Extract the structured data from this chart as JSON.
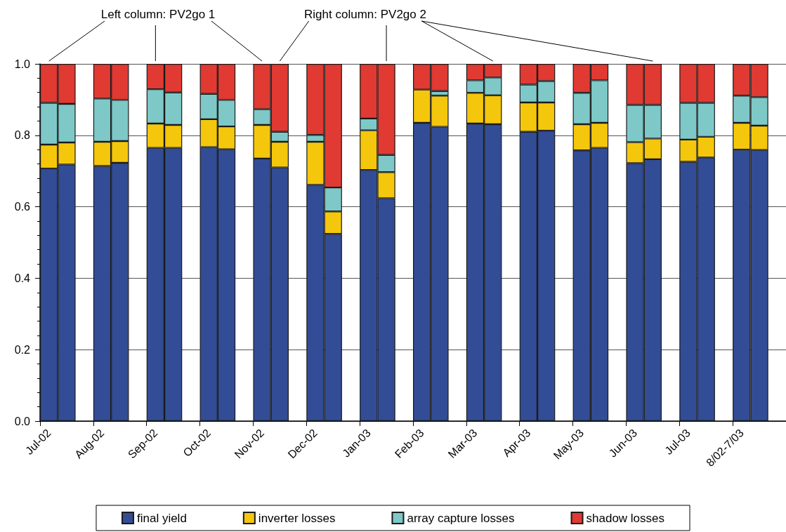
{
  "chart_data": {
    "type": "bar",
    "stacked": true,
    "categories": [
      "Jul-02",
      null,
      null,
      "Aug-02",
      null,
      null,
      "Sep-02",
      null,
      null,
      "Oct-02",
      null,
      null,
      "Nov-02",
      null,
      null,
      "Dec-02",
      null,
      null,
      "Jan-03",
      null,
      null,
      "Feb-03",
      null,
      null,
      "Mar-03",
      null,
      null,
      "Apr-03",
      null,
      null,
      "May-03",
      null,
      null,
      "Jun-03",
      null,
      null,
      "Jul-03",
      null,
      null,
      "8/02-7/03",
      null,
      null
    ],
    "series": [
      {
        "name": "final yield",
        "color": "#324d95",
        "values": [
          0.707,
          0.718,
          null,
          0.714,
          0.723,
          null,
          0.765,
          0.765,
          null,
          0.767,
          0.761,
          null,
          0.735,
          0.71,
          null,
          0.661,
          0.524,
          null,
          0.703,
          0.624,
          null,
          0.835,
          0.824,
          null,
          0.833,
          0.831,
          null,
          0.81,
          0.813,
          null,
          0.758,
          0.765,
          null,
          0.722,
          0.733,
          null,
          0.726,
          0.738,
          null,
          0.76,
          0.759,
          null
        ]
      },
      {
        "name": "inverter losses",
        "color": "#f5c70c",
        "values": [
          0.067,
          0.062,
          null,
          0.068,
          0.061,
          null,
          0.068,
          0.064,
          null,
          0.078,
          0.064,
          null,
          0.094,
          0.072,
          null,
          0.121,
          0.063,
          null,
          0.111,
          0.073,
          null,
          0.093,
          0.087,
          null,
          0.086,
          0.081,
          null,
          0.082,
          0.079,
          null,
          0.073,
          0.07,
          null,
          0.059,
          0.058,
          null,
          0.062,
          0.058,
          null,
          0.075,
          0.068,
          null
        ]
      },
      {
        "name": "array capture losses",
        "color": "#7ec8c8",
        "values": [
          0.117,
          0.108,
          null,
          0.121,
          0.115,
          null,
          0.096,
          0.091,
          null,
          0.071,
          0.074,
          null,
          0.044,
          0.028,
          null,
          0.019,
          0.067,
          null,
          0.033,
          0.048,
          null,
          null,
          0.013,
          null,
          0.035,
          0.05,
          null,
          0.05,
          0.06,
          null,
          0.088,
          0.119,
          null,
          0.104,
          0.094,
          null,
          0.103,
          0.095,
          null,
          0.076,
          0.08,
          null
        ]
      },
      {
        "name": "shadow losses",
        "color": "#e03a33",
        "values": [
          0.109,
          0.112,
          null,
          0.097,
          0.101,
          null,
          0.071,
          0.08,
          null,
          0.084,
          0.101,
          null,
          0.127,
          0.19,
          null,
          0.199,
          0.346,
          null,
          0.153,
          0.255,
          null,
          0.072,
          0.076,
          null,
          0.046,
          0.038,
          null,
          0.058,
          0.048,
          null,
          0.081,
          0.046,
          null,
          0.115,
          0.115,
          null,
          0.109,
          0.109,
          null,
          0.089,
          0.093,
          null
        ]
      }
    ],
    "ylim": [
      0,
      1
    ],
    "yticks": [
      {
        "value": 0,
        "label": "0.0"
      },
      {
        "value": 0.2,
        "label": "0.2"
      },
      {
        "value": 0.4,
        "label": "0.4"
      },
      {
        "value": 0.6,
        "label": "0.6"
      },
      {
        "value": 0.8,
        "label": "0.8"
      },
      {
        "value": 1,
        "label": "1.0"
      }
    ],
    "grid": "y",
    "legend": "bottom",
    "annotations": [
      "Left column: PV2go 1",
      "Right column: PV2go 2"
    ]
  }
}
